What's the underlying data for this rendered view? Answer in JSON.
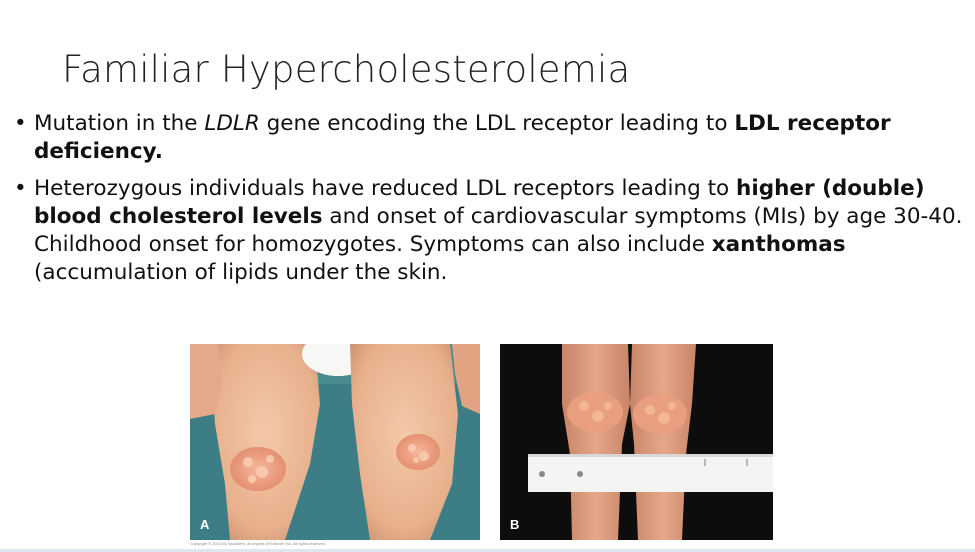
{
  "slide": {
    "title": "Familiar Hypercholesterolemia",
    "bullets": [
      {
        "parts": [
          {
            "text": "Mutation in the ",
            "style": "normal"
          },
          {
            "text": "LDLR",
            "style": "italic"
          },
          {
            "text": " gene encoding the LDL receptor leading to ",
            "style": "normal"
          },
          {
            "text": "LDL receptor deficiency.",
            "style": "bold"
          }
        ]
      },
      {
        "parts": [
          {
            "text": "Heterozygous individuals have reduced LDL receptors leading to ",
            "style": "normal"
          },
          {
            "text": "higher (double) blood cholesterol levels",
            "style": "bold"
          },
          {
            "text": " and onset of cardiovascular symptoms (MIs) by age 30-40.  Childhood onset for homozygotes.  Symptoms can also include ",
            "style": "normal"
          },
          {
            "text": "xanthomas",
            "style": "bold"
          },
          {
            "text": " (accumulation of lipids under the skin.",
            "style": "normal"
          }
        ]
      }
    ],
    "bullet_symbol": "•",
    "photos": [
      {
        "label": "A"
      },
      {
        "label": "B"
      }
    ],
    "copyright": "Copyright © 2013 by Saunders, an imprint of Elsevier Inc. All rights reserved."
  }
}
